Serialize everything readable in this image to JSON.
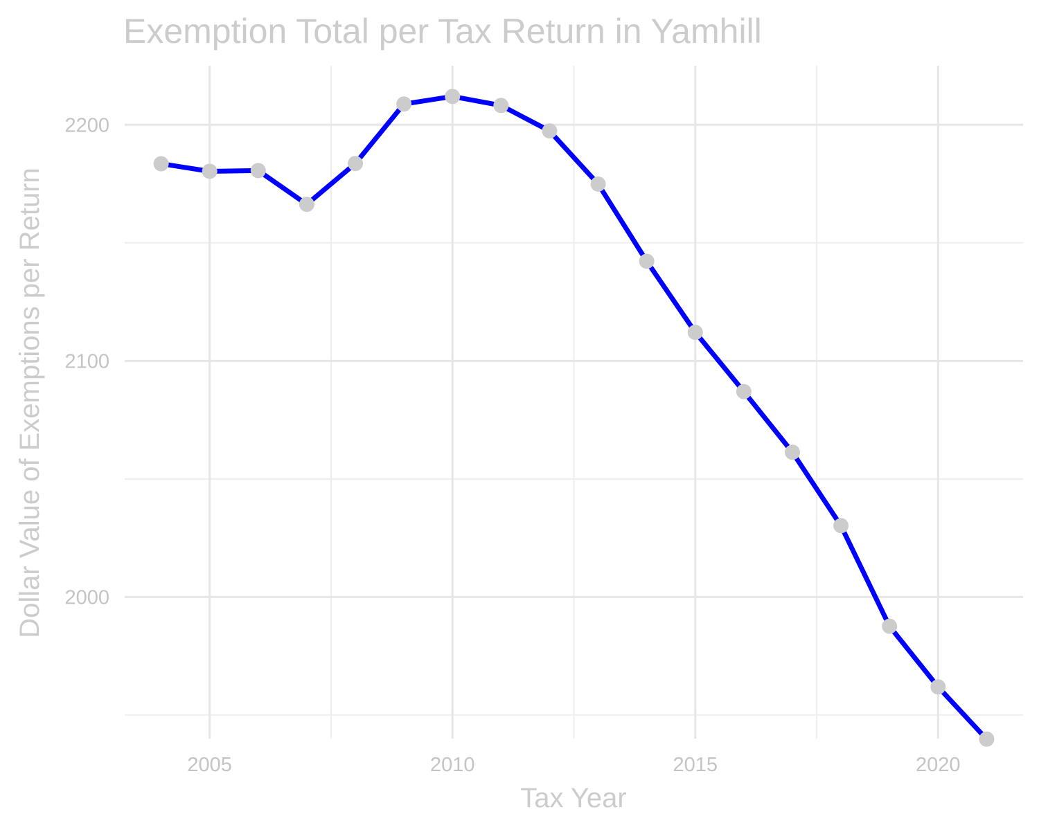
{
  "chart_data": {
    "type": "line",
    "title": "Exemption Total per Tax Return in Yamhill",
    "xlabel": "Tax Year",
    "ylabel": "Dollar Value of Exemptions per Return",
    "xlim": [
      2003.25,
      2021.75
    ],
    "ylim": [
      1940,
      2225
    ],
    "x_ticks": [
      2005,
      2010,
      2015,
      2020
    ],
    "x_minor": [
      2007.5,
      2012.5,
      2017.5
    ],
    "y_ticks": [
      2000,
      2100,
      2200
    ],
    "y_minor": [
      1950,
      2050,
      2150
    ],
    "x_tick_labels": [
      "2005",
      "2010",
      "2015",
      "2020"
    ],
    "y_tick_labels": [
      "2000",
      "2100",
      "2200"
    ],
    "grid": true,
    "legend": "none",
    "colors": {
      "line": "#0000ff",
      "point": "#cccccc",
      "text": "#cccccc"
    },
    "x": [
      2004,
      2005,
      2006,
      2007,
      2008,
      2009,
      2010,
      2011,
      2012,
      2013,
      2014,
      2015,
      2016,
      2017,
      2018,
      2019,
      2020,
      2021
    ],
    "series": [
      {
        "values": [
          2183.5,
          2180.3,
          2180.6,
          2166.3,
          2183.6,
          2208.8,
          2212.0,
          2208.2,
          2197.4,
          2174.9,
          2142.2,
          2112.1,
          2087.0,
          2061.3,
          2030.2,
          1987.6,
          1961.9,
          1939.8
        ]
      }
    ]
  }
}
